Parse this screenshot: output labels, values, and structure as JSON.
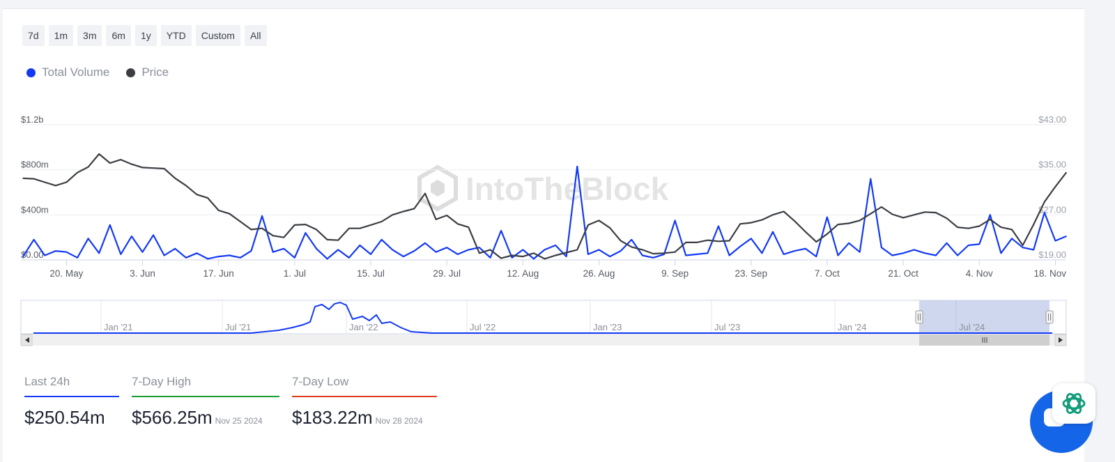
{
  "range_buttons": [
    "7d",
    "1m",
    "3m",
    "6m",
    "1y",
    "YTD",
    "Custom",
    "All"
  ],
  "legend": [
    {
      "label": "Total Volume",
      "color": "#1239f5"
    },
    {
      "label": "Price",
      "color": "#3a3d42"
    }
  ],
  "watermark": "IntoTheBlock",
  "navigator": {
    "labels": [
      "Jan '21",
      "Jul '21",
      "Jan '22",
      "Jul '22",
      "Jan '23",
      "Jul '23",
      "Jan '24",
      "Jul '24"
    ],
    "selected_color": "#c9d3ec"
  },
  "chart_data": {
    "type": "line",
    "x": [
      "2024-05-12",
      "2024-05-14",
      "2024-05-16",
      "2024-05-18",
      "2024-05-20",
      "2024-05-22",
      "2024-05-24",
      "2024-05-26",
      "2024-05-28",
      "2024-05-30",
      "2024-06-01",
      "2024-06-03",
      "2024-06-05",
      "2024-06-07",
      "2024-06-09",
      "2024-06-11",
      "2024-06-13",
      "2024-06-15",
      "2024-06-17",
      "2024-06-19",
      "2024-06-21",
      "2024-06-23",
      "2024-06-25",
      "2024-06-27",
      "2024-06-29",
      "2024-07-01",
      "2024-07-03",
      "2024-07-05",
      "2024-07-07",
      "2024-07-09",
      "2024-07-11",
      "2024-07-13",
      "2024-07-15",
      "2024-07-17",
      "2024-07-19",
      "2024-07-21",
      "2024-07-23",
      "2024-07-25",
      "2024-07-27",
      "2024-07-29",
      "2024-07-31",
      "2024-08-02",
      "2024-08-04",
      "2024-08-06",
      "2024-08-08",
      "2024-08-10",
      "2024-08-12",
      "2024-08-14",
      "2024-08-16",
      "2024-08-18",
      "2024-08-20",
      "2024-08-22",
      "2024-08-24",
      "2024-08-26",
      "2024-08-28",
      "2024-08-30",
      "2024-09-01",
      "2024-09-03",
      "2024-09-05",
      "2024-09-07",
      "2024-09-09",
      "2024-09-11",
      "2024-09-13",
      "2024-09-15",
      "2024-09-17",
      "2024-09-19",
      "2024-09-21",
      "2024-09-23",
      "2024-09-25",
      "2024-09-27",
      "2024-09-29",
      "2024-10-01",
      "2024-10-03",
      "2024-10-05",
      "2024-10-07",
      "2024-10-09",
      "2024-10-11",
      "2024-10-13",
      "2024-10-15",
      "2024-10-17",
      "2024-10-19",
      "2024-10-21",
      "2024-10-23",
      "2024-10-25",
      "2024-10-27",
      "2024-10-29",
      "2024-10-31",
      "2024-11-02",
      "2024-11-04",
      "2024-11-06",
      "2024-11-08",
      "2024-11-10",
      "2024-11-12",
      "2024-11-14",
      "2024-11-16",
      "2024-11-18",
      "2024-11-20"
    ],
    "series": [
      {
        "name": "Total Volume",
        "axis": "left",
        "color": "#1239f5",
        "values": [
          30,
          180,
          40,
          80,
          70,
          20,
          190,
          60,
          310,
          50,
          210,
          70,
          220,
          40,
          100,
          20,
          60,
          10,
          30,
          40,
          20,
          80,
          390,
          70,
          100,
          20,
          240,
          100,
          10,
          90,
          20,
          130,
          50,
          180,
          90,
          30,
          80,
          150,
          70,
          110,
          50,
          90,
          110,
          20,
          260,
          20,
          90,
          10,
          90,
          130,
          30,
          830,
          50,
          90,
          30,
          80,
          180,
          40,
          20,
          50,
          350,
          40,
          50,
          60,
          300,
          40,
          120,
          190,
          60,
          250,
          50,
          80,
          100,
          30,
          380,
          40,
          150,
          70,
          720,
          110,
          40,
          60,
          90,
          60,
          40,
          150,
          40,
          130,
          140,
          400,
          60,
          190,
          110,
          90,
          420,
          170,
          210
        ]
      },
      {
        "name": "Price",
        "axis": "right",
        "color": "#3a3d42",
        "values": [
          33.5,
          33.4,
          32.8,
          32.2,
          32.8,
          34.5,
          35.5,
          37.8,
          36.2,
          36.8,
          36.0,
          35.4,
          35.3,
          35.2,
          33.5,
          32.2,
          30.6,
          30.0,
          27.8,
          27.2,
          25.8,
          24.4,
          24.6,
          23.3,
          23.0,
          25.2,
          25.3,
          24.4,
          22.6,
          22.5,
          24.6,
          24.6,
          25.2,
          25.8,
          27.0,
          27.6,
          28.1,
          30.8,
          26.2,
          26.9,
          25.4,
          24.8,
          20.2,
          20.8,
          19.3,
          19.8,
          19.6,
          20.2,
          19.2,
          19.8,
          20.3,
          20.8,
          25.2,
          26.0,
          24.7,
          22.4,
          21.3,
          20.8,
          20.1,
          20.2,
          20.4,
          22.1,
          22.1,
          22.5,
          22.3,
          22.4,
          25.4,
          25.6,
          26.1,
          27.0,
          27.6,
          25.9,
          24.0,
          22.2,
          23.6,
          25.3,
          25.5,
          26.0,
          27.2,
          28.4,
          27.1,
          26.5,
          27.0,
          27.5,
          27.4,
          26.4,
          24.8,
          24.6,
          25.0,
          26.2,
          24.8,
          24.4,
          21.6,
          25.3,
          29.3,
          32.0,
          34.5
        ]
      }
    ],
    "x_tick_labels": [
      "20. May",
      "3. Jun",
      "17. Jun",
      "1. Jul",
      "15. Jul",
      "29. Jul",
      "12. Aug",
      "26. Aug",
      "9. Sep",
      "23. Sep",
      "7. Oct",
      "21. Oct",
      "4. Nov",
      "18. Nov"
    ],
    "y_left": {
      "ticks": [
        "$0.00",
        "$400m",
        "$800m",
        "$1.2b"
      ],
      "values": [
        0,
        400,
        800,
        1200
      ],
      "unit": "$m",
      "ylim": [
        0,
        1200
      ]
    },
    "y_right": {
      "ticks": [
        "$19.00",
        "$27.00",
        "$35.00",
        "$43.00"
      ],
      "values": [
        19,
        27,
        35,
        43
      ],
      "ylim": [
        19,
        43
      ]
    },
    "legend_position": "top-left",
    "grid": true
  },
  "stats": [
    {
      "label": "Last 24h",
      "value": "$250.54m",
      "date": "",
      "color": "#1239f5"
    },
    {
      "label": "7-Day High",
      "value": "$566.25m",
      "date": "Nov 25 2024",
      "color": "#1a9e2e"
    },
    {
      "label": "7-Day Low",
      "value": "$183.22m",
      "date": "Nov 28 2024",
      "color": "#e23a1f"
    }
  ]
}
